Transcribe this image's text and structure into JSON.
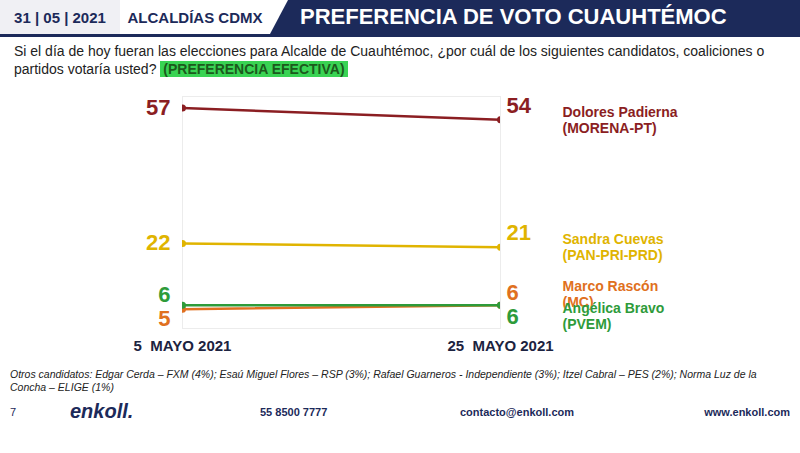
{
  "chart_data": {
    "type": "line",
    "title": "PREFERENCIA DE VOTO CUAUHTÉMOC",
    "subtitle": "Si el día de hoy fueran las elecciones para Alcalde de Cuauhtémoc, ¿por cuál de los siguientes candidatos, coaliciones o partidos votaría usted?",
    "annotations": [
      "(PREFERENCIA EFECTIVA)",
      "Otros candidatos: Edgar Cerda – FXM (4%); Esaú Miguel Flores – RSP (3%); Rafael Guarneros -  Independiente (3%); Itzel Cabral – PES (2%); Norma Luz de la Concha – ELIGE (1%)"
    ],
    "categories": [
      "5  MAYO 2021",
      "25  MAYO 2021"
    ],
    "series": [
      {
        "name": "Dolores Padierna (MORENA-PT)",
        "color": "#8b1e22",
        "values": [
          57,
          54
        ]
      },
      {
        "name": "Sandra Cuevas (PAN-PRI-PRD)",
        "color": "#e0b400",
        "values": [
          22,
          21
        ]
      },
      {
        "name": "Marco Rascón (MC)",
        "color": "#e07020",
        "values": [
          5,
          6
        ]
      },
      {
        "name": "Angélica Bravo (PVEM)",
        "color": "#2e9b3a",
        "values": [
          6,
          6
        ]
      }
    ],
    "ylim": [
      0,
      60
    ],
    "tick_labels": "x",
    "data_labels": true,
    "marker": "circle"
  },
  "page": {
    "date": "31 | 05 | 2021",
    "section": "ALCALDÍAS CDMX",
    "page_number": "7",
    "logo": "enkoll.",
    "phone": "55 8500 7777",
    "email": "contacto@enkoll.com",
    "web": "www.enkoll.com"
  }
}
